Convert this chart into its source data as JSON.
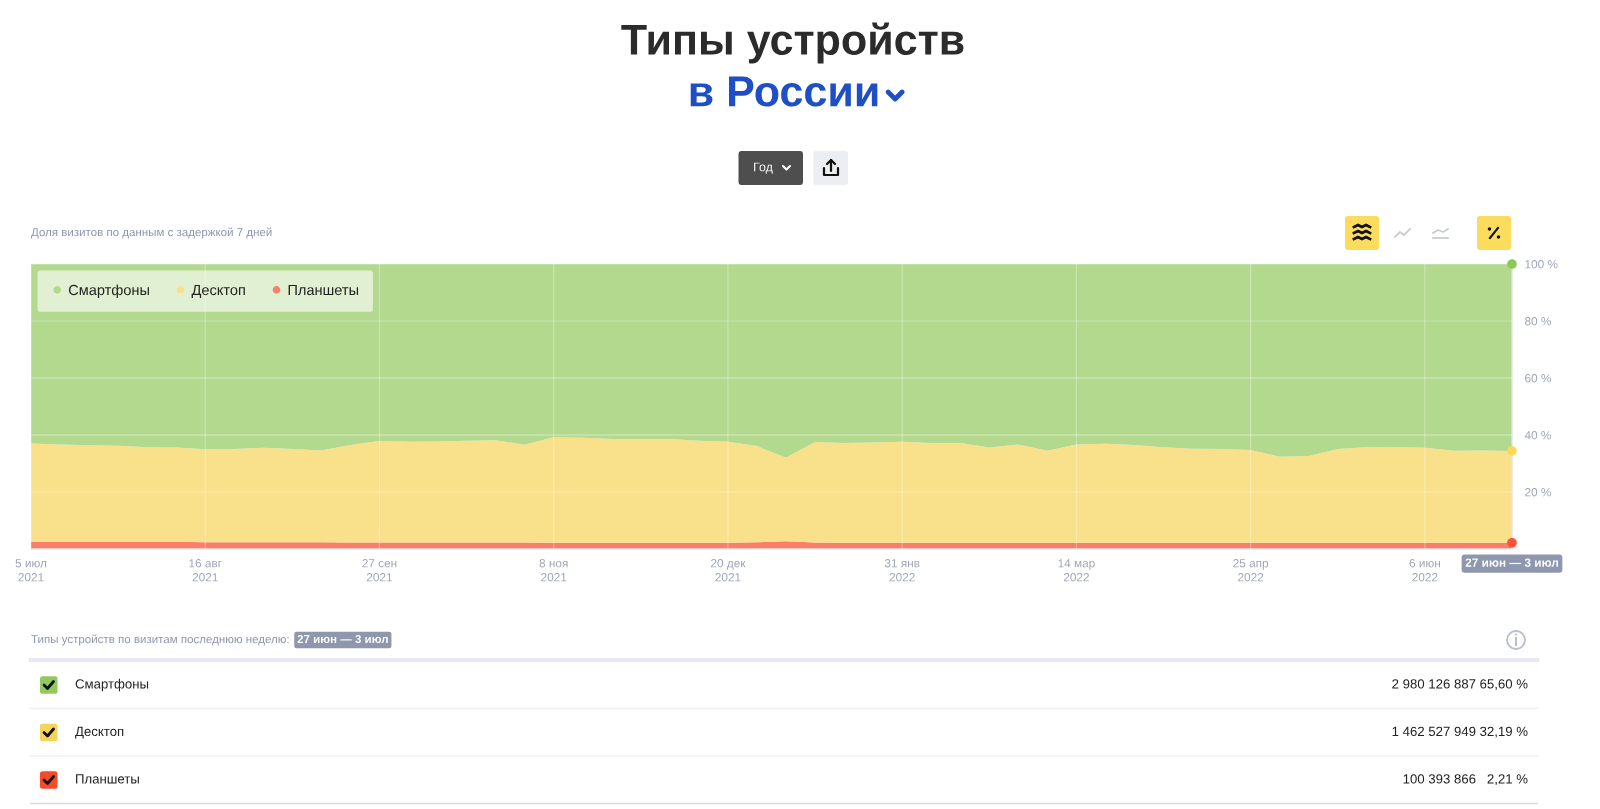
{
  "chart_data": {
    "type": "area",
    "title": "Типы устройств\nв России",
    "subtitle": "Доля визитов по данным с задержкой 7 дней",
    "stacked": true,
    "x": [
      "2021-07-05",
      "2021-07-12",
      "2021-07-19",
      "2021-07-26",
      "2021-08-02",
      "2021-08-09",
      "2021-08-16",
      "2021-08-23",
      "2021-08-30",
      "2021-09-06",
      "2021-09-13",
      "2021-09-20",
      "2021-09-27",
      "2021-10-04",
      "2021-10-11",
      "2021-10-18",
      "2021-10-25",
      "2021-11-01",
      "2021-11-08",
      "2021-11-15",
      "2021-11-22",
      "2021-11-29",
      "2021-12-06",
      "2021-12-13",
      "2021-12-20",
      "2021-12-27",
      "2022-01-03",
      "2022-01-10",
      "2022-01-17",
      "2022-01-24",
      "2022-01-31",
      "2022-02-07",
      "2022-02-14",
      "2022-02-21",
      "2022-02-28",
      "2022-03-07",
      "2022-03-14",
      "2022-03-21",
      "2022-03-28",
      "2022-04-04",
      "2022-04-11",
      "2022-04-18",
      "2022-04-25",
      "2022-05-02",
      "2022-05-09",
      "2022-05-16",
      "2022-05-23",
      "2022-05-30",
      "2022-06-06",
      "2022-06-13",
      "2022-06-20",
      "2022-06-27"
    ],
    "series": [
      {
        "name": "Планшеты",
        "color": "#f88069",
        "values": [
          2.5,
          2.5,
          2.5,
          2.5,
          2.5,
          2.5,
          2.4,
          2.4,
          2.4,
          2.4,
          2.4,
          2.3,
          2.3,
          2.3,
          2.3,
          2.3,
          2.3,
          2.3,
          2.2,
          2.2,
          2.2,
          2.2,
          2.2,
          2.2,
          2.2,
          2.4,
          2.7,
          2.3,
          2.2,
          2.2,
          2.2,
          2.2,
          2.2,
          2.2,
          2.2,
          2.2,
          2.2,
          2.2,
          2.2,
          2.2,
          2.2,
          2.2,
          2.2,
          2.2,
          2.2,
          2.2,
          2.2,
          2.2,
          2.2,
          2.2,
          2.2,
          2.2
        ]
      },
      {
        "name": "Десктоп",
        "color": "#f9e08b",
        "values": [
          34.5,
          34.2,
          33.9,
          33.7,
          33.2,
          33.1,
          32.6,
          32.7,
          33.1,
          32.7,
          32.2,
          34.2,
          35.6,
          35.3,
          35.4,
          35.7,
          35.9,
          34.3,
          37.0,
          36.8,
          36.4,
          36.4,
          36.4,
          35.8,
          35.4,
          33.7,
          29.3,
          35.2,
          35.0,
          35.2,
          35.4,
          35.0,
          35.0,
          33.4,
          34.5,
          32.3,
          34.5,
          34.7,
          34.3,
          33.5,
          33.0,
          32.9,
          32.5,
          30.2,
          30.4,
          32.9,
          33.5,
          33.6,
          33.3,
          32.3,
          32.4,
          32.2
        ]
      },
      {
        "name": "Смартфоны",
        "color": "#b3d98e",
        "values": [
          63.0,
          63.3,
          63.6,
          63.8,
          64.3,
          64.4,
          65.0,
          64.9,
          64.5,
          64.9,
          65.4,
          63.5,
          62.1,
          62.4,
          62.3,
          62.0,
          61.8,
          63.4,
          60.8,
          61.0,
          61.4,
          61.4,
          61.4,
          62.0,
          62.4,
          63.9,
          68.0,
          62.5,
          62.8,
          62.6,
          62.4,
          62.8,
          62.8,
          64.4,
          63.3,
          65.5,
          63.3,
          63.1,
          63.5,
          64.3,
          64.8,
          64.9,
          65.3,
          67.6,
          67.4,
          64.9,
          64.3,
          64.2,
          64.5,
          65.5,
          65.4,
          65.6
        ]
      },
      {
        "type": "scatter",
        "marker": "circle",
        "x": [
          "2022-06-27",
          "2022-06-27",
          "2022-06-27"
        ],
        "values": [
          100,
          34.4,
          2.2
        ],
        "colors": [
          "#8ec85a",
          "#fcd95b",
          "#f9553a"
        ]
      }
    ],
    "xlim": [
      "2021-07-05",
      "2022-06-27"
    ],
    "xticks": [
      {
        "value": "2021-07-05",
        "label": "5 июл\n2021"
      },
      {
        "value": "2021-08-16",
        "label": "16 авг\n2021"
      },
      {
        "value": "2021-09-27",
        "label": "27 сен\n2021"
      },
      {
        "value": "2021-11-08",
        "label": "8 ноя\n2021"
      },
      {
        "value": "2021-12-20",
        "label": "20 дек\n2021"
      },
      {
        "value": "2022-01-31",
        "label": "31 янв\n2022"
      },
      {
        "value": "2022-03-14",
        "label": "14 мар\n2022"
      },
      {
        "value": "2022-04-25",
        "label": "25 апр\n2022"
      },
      {
        "value": "2022-06-06",
        "label": "6 июн\n2022"
      }
    ],
    "ylim": [
      0,
      100
    ],
    "yticks": [
      {
        "value": 20,
        "label": "20 %"
      },
      {
        "value": 40,
        "label": "40 %"
      },
      {
        "value": 60,
        "label": "60 %"
      },
      {
        "value": 80,
        "label": "80 %"
      },
      {
        "value": 100,
        "label": "100 %"
      }
    ],
    "grid": true,
    "legend": "top left",
    "annotations": [
      "Год",
      "27 июн — 3 июл",
      "Типы устройств по визитам последнюю неделю:",
      "27 июн — 3 июл",
      "2 980 126 887",
      "65,60 %",
      "1 462 527 949",
      "32,19 %",
      "100 393 866",
      "2,21 %"
    ]
  }
}
